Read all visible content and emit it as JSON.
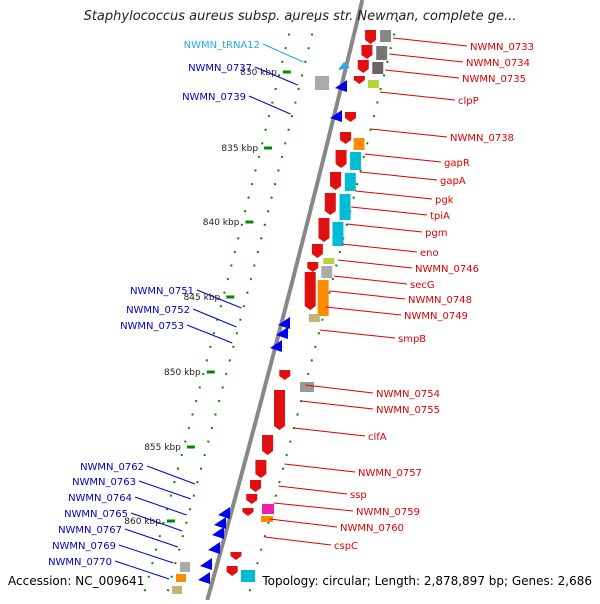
{
  "title": "Staphylococcus aureus subsp. aureus str. Newman, complete ge...",
  "footer": {
    "accession": "Accession: NC_009641",
    "summary": "Topology: circular; Length: 2,878,897 bp; Genes: 2,686"
  },
  "scale_labels": [
    "830 kbp",
    "835 kbp",
    "840 kbp",
    "845 kbp",
    "850 kbp",
    "855 kbp",
    "860 kbp"
  ],
  "colors": {
    "backbone": "#888888",
    "forward_label": "#e00000",
    "reverse_label": "#0000cc",
    "trna_label": "#22aaee",
    "tick": "#008800"
  },
  "right_labels": [
    "NWMN_0733",
    "NWMN_0734",
    "NWMN_0735",
    "clpP",
    "NWMN_0738",
    "gapR",
    "gapA",
    "pgk",
    "tpiA",
    "pgm",
    "eno",
    "NWMN_0746",
    "secG",
    "NWMN_0748",
    "NWMN_0749",
    "smpB",
    "NWMN_0754",
    "NWMN_0755",
    "clfA",
    "NWMN_0757",
    "ssp",
    "NWMN_0759",
    "NWMN_0760",
    "cspC"
  ],
  "left_labels": [
    "NWMN_tRNA12",
    "NWMN_0737",
    "NWMN_0739",
    "NWMN_0751",
    "NWMN_0752",
    "NWMN_0753",
    "NWMN_0762",
    "NWMN_0763",
    "NWMN_0764",
    "NWMN_0765",
    "NWMN_0767",
    "NWMN_0769",
    "NWMN_0770"
  ]
}
